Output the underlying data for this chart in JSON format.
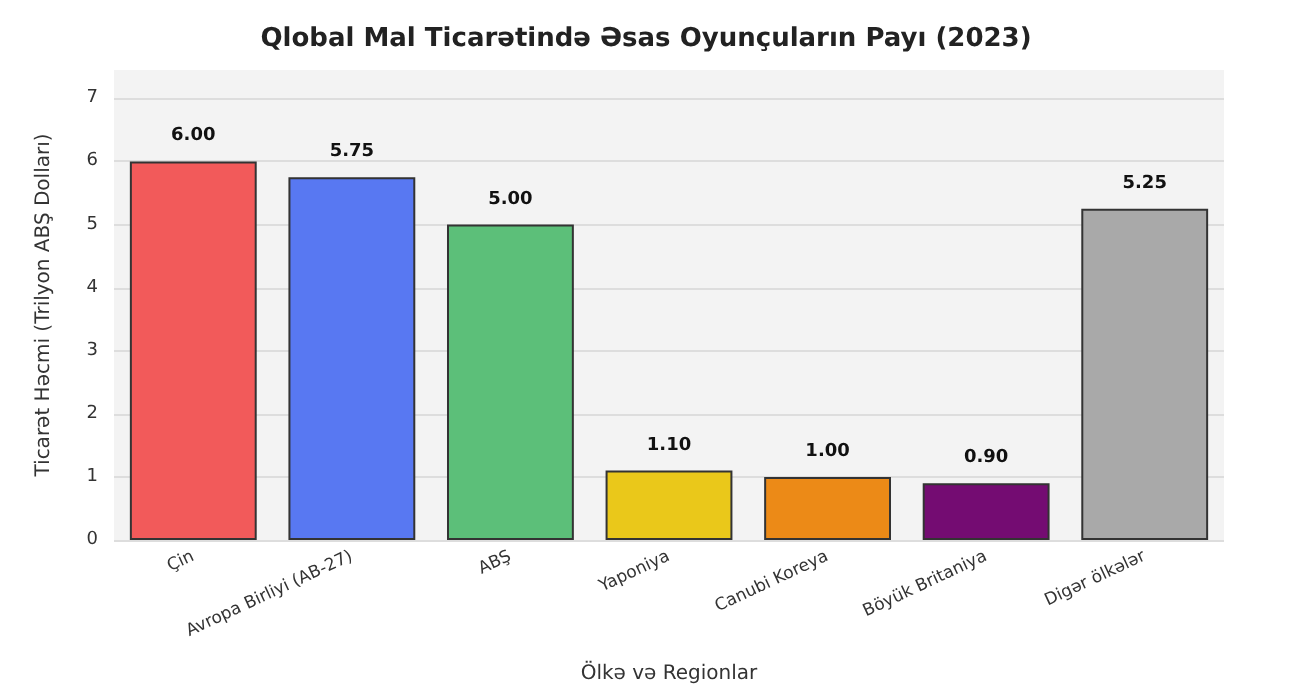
{
  "chart_data": {
    "type": "bar",
    "title": "Qlobal Mal Ticarətində Əsas Oyunçuların Payı (2023)",
    "xlabel": "Ölkə və Regionlar",
    "ylabel": "Ticarət Həcmi (Trilyon ABŞ Dolları)",
    "categories": [
      "Çin",
      "Avropa Birliyi (AB-27)",
      "ABŞ",
      "Yaponiya",
      "Canubi Koreya",
      "Böyük Britaniya",
      "Digər ölkələr"
    ],
    "values": [
      6.0,
      5.75,
      5.0,
      1.1,
      1.0,
      0.9,
      5.25
    ],
    "value_labels": [
      "6.00",
      "5.75",
      "5.00",
      "1.10",
      "1.00",
      "0.90",
      "5.25"
    ],
    "colors": [
      "#f25a5a",
      "#5878f2",
      "#5cbf79",
      "#eac81a",
      "#ec8a17",
      "#740c72",
      "#a9a9a9"
    ],
    "ylim": [
      0,
      7.45
    ],
    "yticks": [
      0,
      1,
      2,
      3,
      4,
      5,
      6,
      7
    ],
    "grid": "y"
  }
}
